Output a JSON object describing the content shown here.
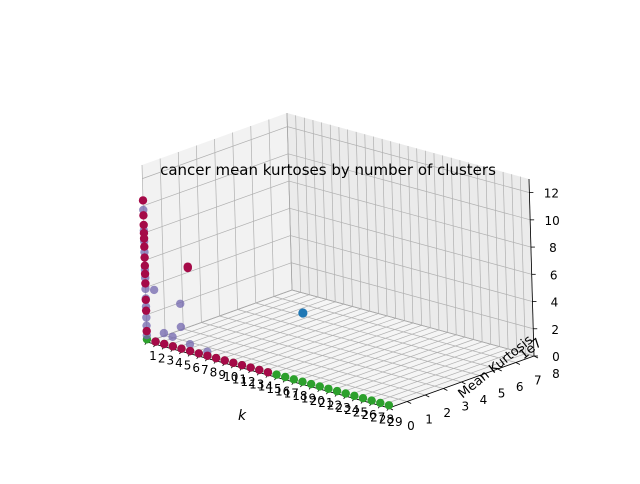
{
  "chart_data": {
    "type": "scatter3d",
    "title": "cancer mean kurtoses by number of clusters",
    "xlabel": "k",
    "ylabel": "Mean Kurtosis",
    "y_offset_label": "1e7",
    "zlabel": "",
    "x_ticks": [
      "1",
      "2",
      "3",
      "4",
      "5",
      "6",
      "7",
      "8",
      "9",
      "10",
      "11",
      "12",
      "13",
      "14",
      "15",
      "16",
      "17",
      "18",
      "19",
      "20",
      "21",
      "22",
      "23",
      "24",
      "25",
      "26",
      "27",
      "28",
      "29"
    ],
    "y_ticks": [
      "0",
      "1",
      "2",
      "3",
      "4",
      "5",
      "6",
      "7",
      "8"
    ],
    "z_ticks": [
      "0",
      "2",
      "4",
      "6",
      "8",
      "10",
      "12"
    ],
    "xlim": [
      1,
      29
    ],
    "ylim": [
      0,
      8
    ],
    "zlim": [
      0,
      13
    ],
    "grid": true,
    "legend": false,
    "colors": {
      "green": "#2ca02c",
      "blue": "#1f77b4",
      "purple": "#7165ad",
      "crimson": "#a50a48",
      "pane_left": "#f2f2f2",
      "pane_back": "#ebebeb",
      "pane_floor": "#f5f5f5",
      "grid": "#b0b0b0"
    },
    "series": [
      {
        "color": "green",
        "points": [
          [
            1,
            0,
            0.2
          ],
          [
            2,
            0,
            0.2
          ],
          [
            3,
            0,
            0.2
          ],
          [
            4,
            0,
            0.2
          ],
          [
            5,
            0,
            0.2
          ],
          [
            6,
            0,
            0.2
          ],
          [
            7,
            0,
            0.2
          ],
          [
            8,
            0,
            0.2
          ],
          [
            9,
            0,
            0.2
          ],
          [
            10,
            0,
            0.2
          ],
          [
            11,
            0,
            0.2
          ],
          [
            12,
            0,
            0.2
          ],
          [
            13,
            0,
            0.2
          ],
          [
            14,
            0,
            0.2
          ],
          [
            15,
            0,
            0.2
          ],
          [
            16,
            0,
            0.2
          ],
          [
            17,
            0,
            0.2
          ],
          [
            18,
            0,
            0.2
          ],
          [
            19,
            0,
            0.2
          ],
          [
            20,
            0,
            0.2
          ],
          [
            21,
            0,
            0.2
          ],
          [
            22,
            0,
            0.2
          ],
          [
            23,
            0,
            0.2
          ],
          [
            24,
            0,
            0.2
          ],
          [
            25,
            0,
            0.2
          ],
          [
            26,
            0,
            0.2
          ],
          [
            27,
            0,
            0.2
          ],
          [
            28,
            0,
            0.2
          ],
          [
            29,
            0,
            0.2
          ]
        ]
      },
      {
        "color": "blue",
        "points": [
          [
            15,
            2,
            3.6
          ]
        ]
      },
      {
        "color": "purple",
        "points": [
          [
            1,
            0,
            0.5
          ],
          [
            1,
            0,
            1.2
          ],
          [
            1,
            0,
            1.8
          ],
          [
            1,
            0,
            2.6
          ],
          [
            1,
            0,
            3.2
          ],
          [
            1,
            0,
            3.9
          ],
          [
            1,
            0,
            4.7
          ],
          [
            1,
            0,
            5.3
          ],
          [
            1,
            0,
            6.6
          ],
          [
            1,
            0,
            7.4
          ],
          [
            1,
            0,
            8.2
          ],
          [
            1,
            0,
            9.7
          ],
          [
            2,
            0,
            4.0
          ],
          [
            5,
            0,
            3.5
          ],
          [
            5,
            0,
            1.8
          ],
          [
            3,
            0,
            1.0
          ],
          [
            4,
            0,
            0.9
          ],
          [
            6,
            0,
            0.7
          ],
          [
            8,
            0,
            0.5
          ]
        ]
      },
      {
        "color": "crimson",
        "points": [
          [
            1,
            0,
            0.8
          ],
          [
            1,
            0,
            2.3
          ],
          [
            1,
            0,
            3.1
          ],
          [
            1,
            0,
            4.3
          ],
          [
            1,
            0,
            5.0
          ],
          [
            1,
            0,
            5.6
          ],
          [
            1,
            0,
            6.2
          ],
          [
            1,
            0,
            7.0
          ],
          [
            1,
            0,
            7.6
          ],
          [
            1,
            0,
            8.0
          ],
          [
            1,
            0,
            8.6
          ],
          [
            1,
            0,
            9.3
          ],
          [
            1,
            0,
            10.4
          ],
          [
            6,
            0,
            6.4
          ],
          [
            6,
            0,
            6.3
          ],
          [
            2,
            0,
            0.2
          ],
          [
            3,
            0,
            0.2
          ],
          [
            4,
            0,
            0.2
          ],
          [
            5,
            0,
            0.2
          ],
          [
            6,
            0,
            0.2
          ],
          [
            7,
            0,
            0.2
          ],
          [
            8,
            0,
            0.2
          ],
          [
            9,
            0,
            0.2
          ],
          [
            10,
            0,
            0.2
          ],
          [
            11,
            0,
            0.2
          ],
          [
            12,
            0,
            0.2
          ],
          [
            13,
            0,
            0.2
          ],
          [
            14,
            0,
            0.2
          ],
          [
            15,
            0,
            0.2
          ]
        ]
      }
    ]
  }
}
